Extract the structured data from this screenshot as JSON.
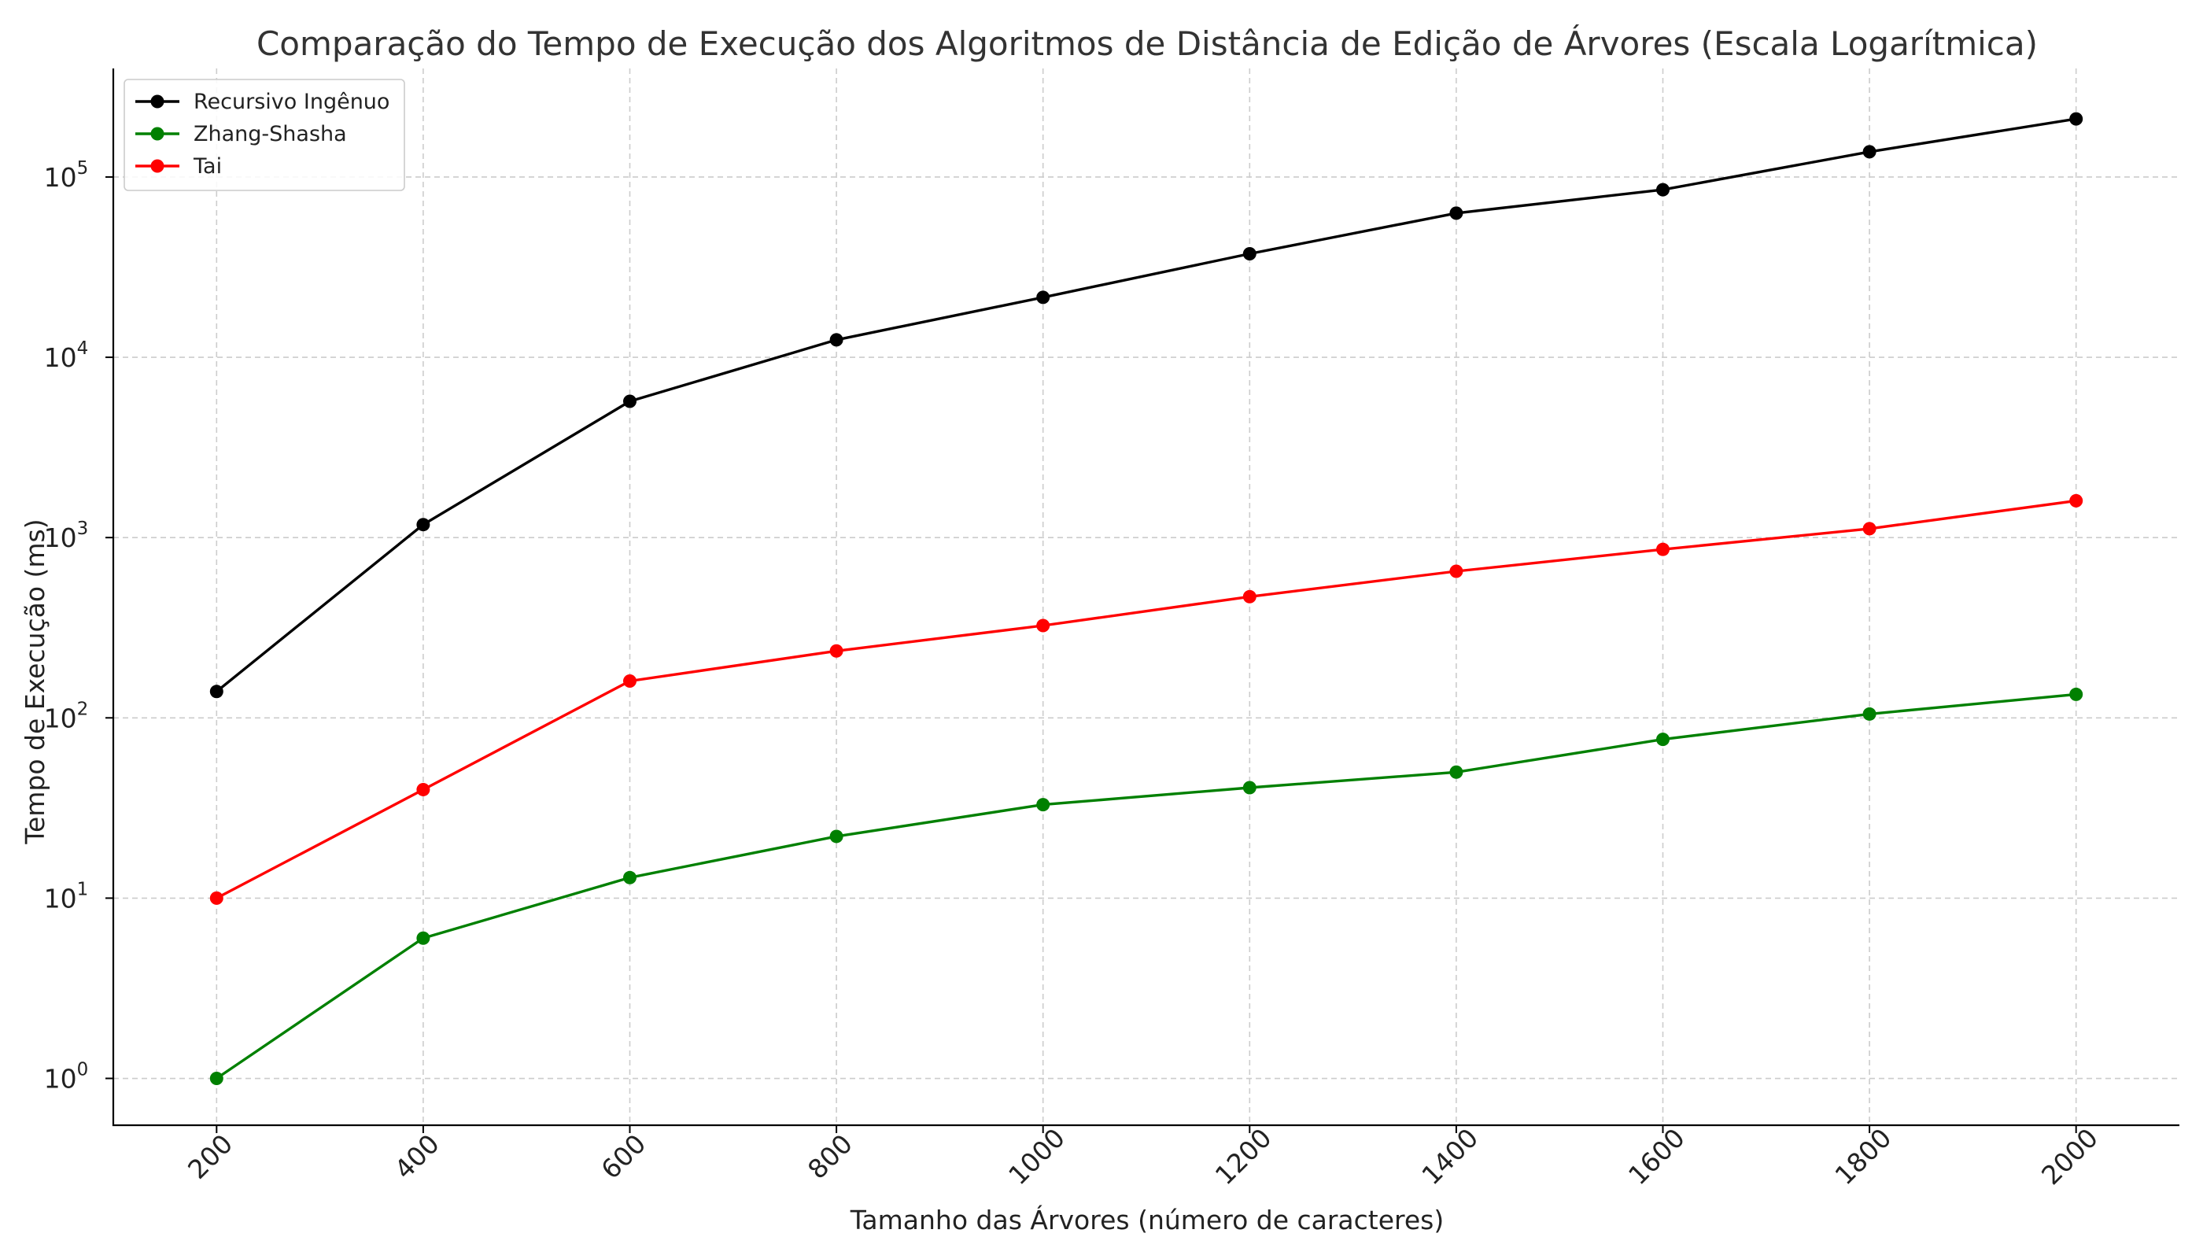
{
  "chart_data": {
    "type": "line",
    "title": "Comparação do Tempo de Execução dos Algoritmos de Distância de Edição de Árvores (Escala Logarítmica)",
    "xlabel": "Tamanho das Árvores (número de caracteres)",
    "ylabel": "Tempo de Execução (ms)",
    "x": [
      200,
      400,
      600,
      800,
      1000,
      1200,
      1400,
      1600,
      1800,
      2000
    ],
    "xlim": [
      100,
      2100
    ],
    "yscale": "log",
    "ylim": [
      0.55,
      400000
    ],
    "y_ticks": [
      {
        "base": "10",
        "exp": "0",
        "value": 1
      },
      {
        "base": "10",
        "exp": "1",
        "value": 10
      },
      {
        "base": "10",
        "exp": "2",
        "value": 100
      },
      {
        "base": "10",
        "exp": "3",
        "value": 1000
      },
      {
        "base": "10",
        "exp": "4",
        "value": 10000
      },
      {
        "base": "10",
        "exp": "5",
        "value": 100000
      }
    ],
    "grid": true,
    "legend_position": "top-left",
    "series": [
      {
        "name": "Recursivo Ingênuo",
        "color": "#000000",
        "values": [
          140,
          1180,
          5700,
          12500,
          21500,
          37500,
          63000,
          85000,
          138000,
          210000
        ]
      },
      {
        "name": "Zhang-Shasha",
        "color": "#008000",
        "values": [
          1,
          6,
          13,
          22,
          33,
          41,
          50,
          76,
          105,
          135
        ]
      },
      {
        "name": "Tai",
        "color": "#ff0000",
        "values": [
          10,
          40,
          160,
          235,
          325,
          470,
          650,
          860,
          1120,
          1600
        ]
      }
    ]
  }
}
